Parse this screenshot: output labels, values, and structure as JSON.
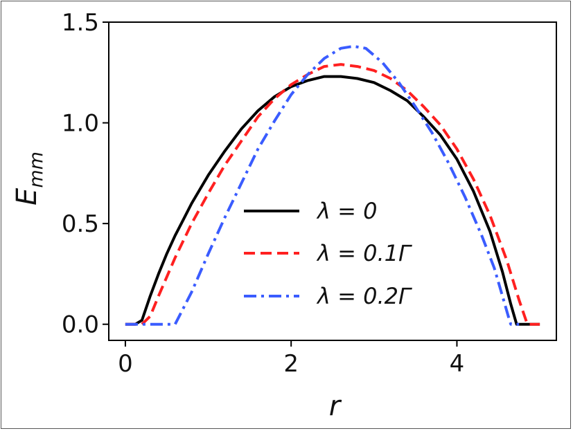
{
  "chart_data": {
    "type": "line",
    "title": "",
    "xlabel": "r",
    "ylabel_main": "E",
    "ylabel_sub": "mm",
    "xlim": [
      -0.2,
      5.2
    ],
    "ylim": [
      -0.08,
      1.5
    ],
    "xticks": [
      0,
      2,
      4
    ],
    "xtick_labels": [
      "0",
      "2",
      "4"
    ],
    "yticks": [
      0.0,
      0.5,
      1.0,
      1.5
    ],
    "ytick_labels": [
      "0.0",
      "0.5",
      "1.0",
      "1.5"
    ],
    "grid": false,
    "legend_position": "center-right",
    "series": [
      {
        "name": "λ = 0",
        "color": "#000000",
        "style": "solid",
        "points": [
          [
            0.0,
            0.0
          ],
          [
            0.12,
            0.0
          ],
          [
            0.2,
            0.02
          ],
          [
            0.3,
            0.14
          ],
          [
            0.4,
            0.25
          ],
          [
            0.5,
            0.35
          ],
          [
            0.6,
            0.44
          ],
          [
            0.7,
            0.52
          ],
          [
            0.8,
            0.6
          ],
          [
            0.9,
            0.67
          ],
          [
            1.0,
            0.74
          ],
          [
            1.2,
            0.86
          ],
          [
            1.4,
            0.97
          ],
          [
            1.6,
            1.06
          ],
          [
            1.8,
            1.13
          ],
          [
            2.0,
            1.18
          ],
          [
            2.2,
            1.21
          ],
          [
            2.4,
            1.23
          ],
          [
            2.6,
            1.23
          ],
          [
            2.8,
            1.22
          ],
          [
            3.0,
            1.2
          ],
          [
            3.2,
            1.16
          ],
          [
            3.4,
            1.11
          ],
          [
            3.6,
            1.03
          ],
          [
            3.8,
            0.94
          ],
          [
            4.0,
            0.82
          ],
          [
            4.2,
            0.66
          ],
          [
            4.4,
            0.46
          ],
          [
            4.55,
            0.26
          ],
          [
            4.65,
            0.1
          ],
          [
            4.72,
            0.0
          ],
          [
            4.85,
            0.0
          ],
          [
            5.0,
            0.0
          ]
        ]
      },
      {
        "name": "λ = 0.1Γ",
        "color": "#ff2020",
        "style": "dashed",
        "points": [
          [
            0.0,
            0.0
          ],
          [
            0.2,
            0.0
          ],
          [
            0.3,
            0.04
          ],
          [
            0.4,
            0.14
          ],
          [
            0.6,
            0.33
          ],
          [
            0.8,
            0.5
          ],
          [
            1.0,
            0.65
          ],
          [
            1.2,
            0.79
          ],
          [
            1.4,
            0.91
          ],
          [
            1.6,
            1.03
          ],
          [
            1.8,
            1.12
          ],
          [
            2.0,
            1.19
          ],
          [
            2.2,
            1.24
          ],
          [
            2.4,
            1.28
          ],
          [
            2.6,
            1.29
          ],
          [
            2.8,
            1.28
          ],
          [
            3.0,
            1.26
          ],
          [
            3.2,
            1.22
          ],
          [
            3.4,
            1.16
          ],
          [
            3.6,
            1.08
          ],
          [
            3.8,
            0.99
          ],
          [
            4.0,
            0.87
          ],
          [
            4.2,
            0.72
          ],
          [
            4.4,
            0.54
          ],
          [
            4.6,
            0.32
          ],
          [
            4.75,
            0.12
          ],
          [
            4.85,
            0.0
          ],
          [
            5.0,
            0.0
          ]
        ]
      },
      {
        "name": "λ = 0.2Γ",
        "color": "#3a5cff",
        "style": "dashdot",
        "points": [
          [
            0.0,
            0.0
          ],
          [
            0.6,
            0.0
          ],
          [
            0.65,
            0.04
          ],
          [
            0.8,
            0.16
          ],
          [
            1.0,
            0.35
          ],
          [
            1.2,
            0.53
          ],
          [
            1.4,
            0.7
          ],
          [
            1.6,
            0.87
          ],
          [
            1.8,
            1.01
          ],
          [
            2.0,
            1.14
          ],
          [
            2.2,
            1.24
          ],
          [
            2.4,
            1.32
          ],
          [
            2.6,
            1.37
          ],
          [
            2.75,
            1.38
          ],
          [
            2.9,
            1.37
          ],
          [
            3.1,
            1.3
          ],
          [
            3.3,
            1.2
          ],
          [
            3.5,
            1.08
          ],
          [
            3.7,
            0.95
          ],
          [
            3.9,
            0.8
          ],
          [
            4.1,
            0.63
          ],
          [
            4.3,
            0.44
          ],
          [
            4.45,
            0.28
          ],
          [
            4.55,
            0.14
          ],
          [
            4.62,
            0.04
          ],
          [
            4.65,
            0.0
          ],
          [
            4.75,
            0.0
          ]
        ]
      }
    ]
  }
}
